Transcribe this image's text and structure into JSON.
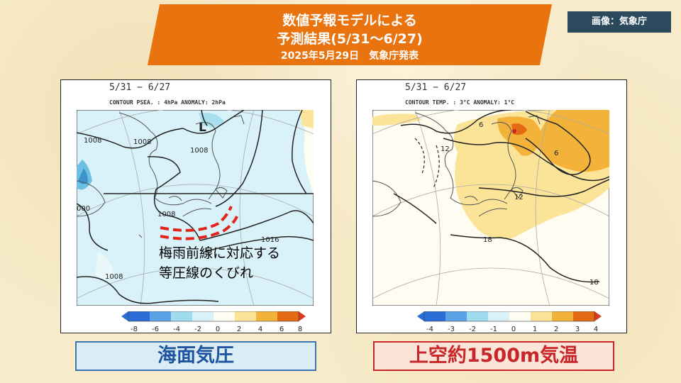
{
  "header": {
    "title_line1": "数値予報モデルによる",
    "title_line2": "予測結果(5/31～6/27)",
    "title_line3": "2025年5月29日　気象庁発表"
  },
  "credit": "画像：気象庁",
  "left_panel": {
    "period": "5/31 − 6/27",
    "contour_info": "CONTOUR PSEA. :  4hPa    ANOMALY:  2hPa",
    "isobar_labels": [
      "1008",
      "1008",
      "1008",
      "1008",
      "1016",
      "1008",
      "000"
    ],
    "low_marker": "L",
    "colorbar_ticks": [
      "-8",
      "-6",
      "-4",
      "-2",
      "0",
      "2",
      "4",
      "6",
      "8"
    ],
    "annotation_line1": "梅雨前線に対応する",
    "annotation_line2": "等圧線のくびれ",
    "caption": "海面気圧"
  },
  "right_panel": {
    "period": "5/31 − 6/27",
    "contour_info": "CONTOUR TEMP. :  3°C    ANOMALY:   1°C",
    "isotherm_labels": [
      "6",
      "12",
      "6",
      "12",
      "18",
      "18"
    ],
    "colorbar_ticks": [
      "-4",
      "-3",
      "-2",
      "-1",
      "0",
      "1",
      "2",
      "3",
      "4"
    ],
    "caption": "上空約1500m気温"
  },
  "colors": {
    "banner": "#e8730f",
    "credit_bg": "#2b4a5e",
    "neg_anomaly_light": "#d9f1f8",
    "neg_anomaly_mid": "#9fdcef",
    "pos_anomaly_light": "#fbe497",
    "pos_anomaly_mid": "#f3b23a",
    "front_red": "#e0241a"
  }
}
